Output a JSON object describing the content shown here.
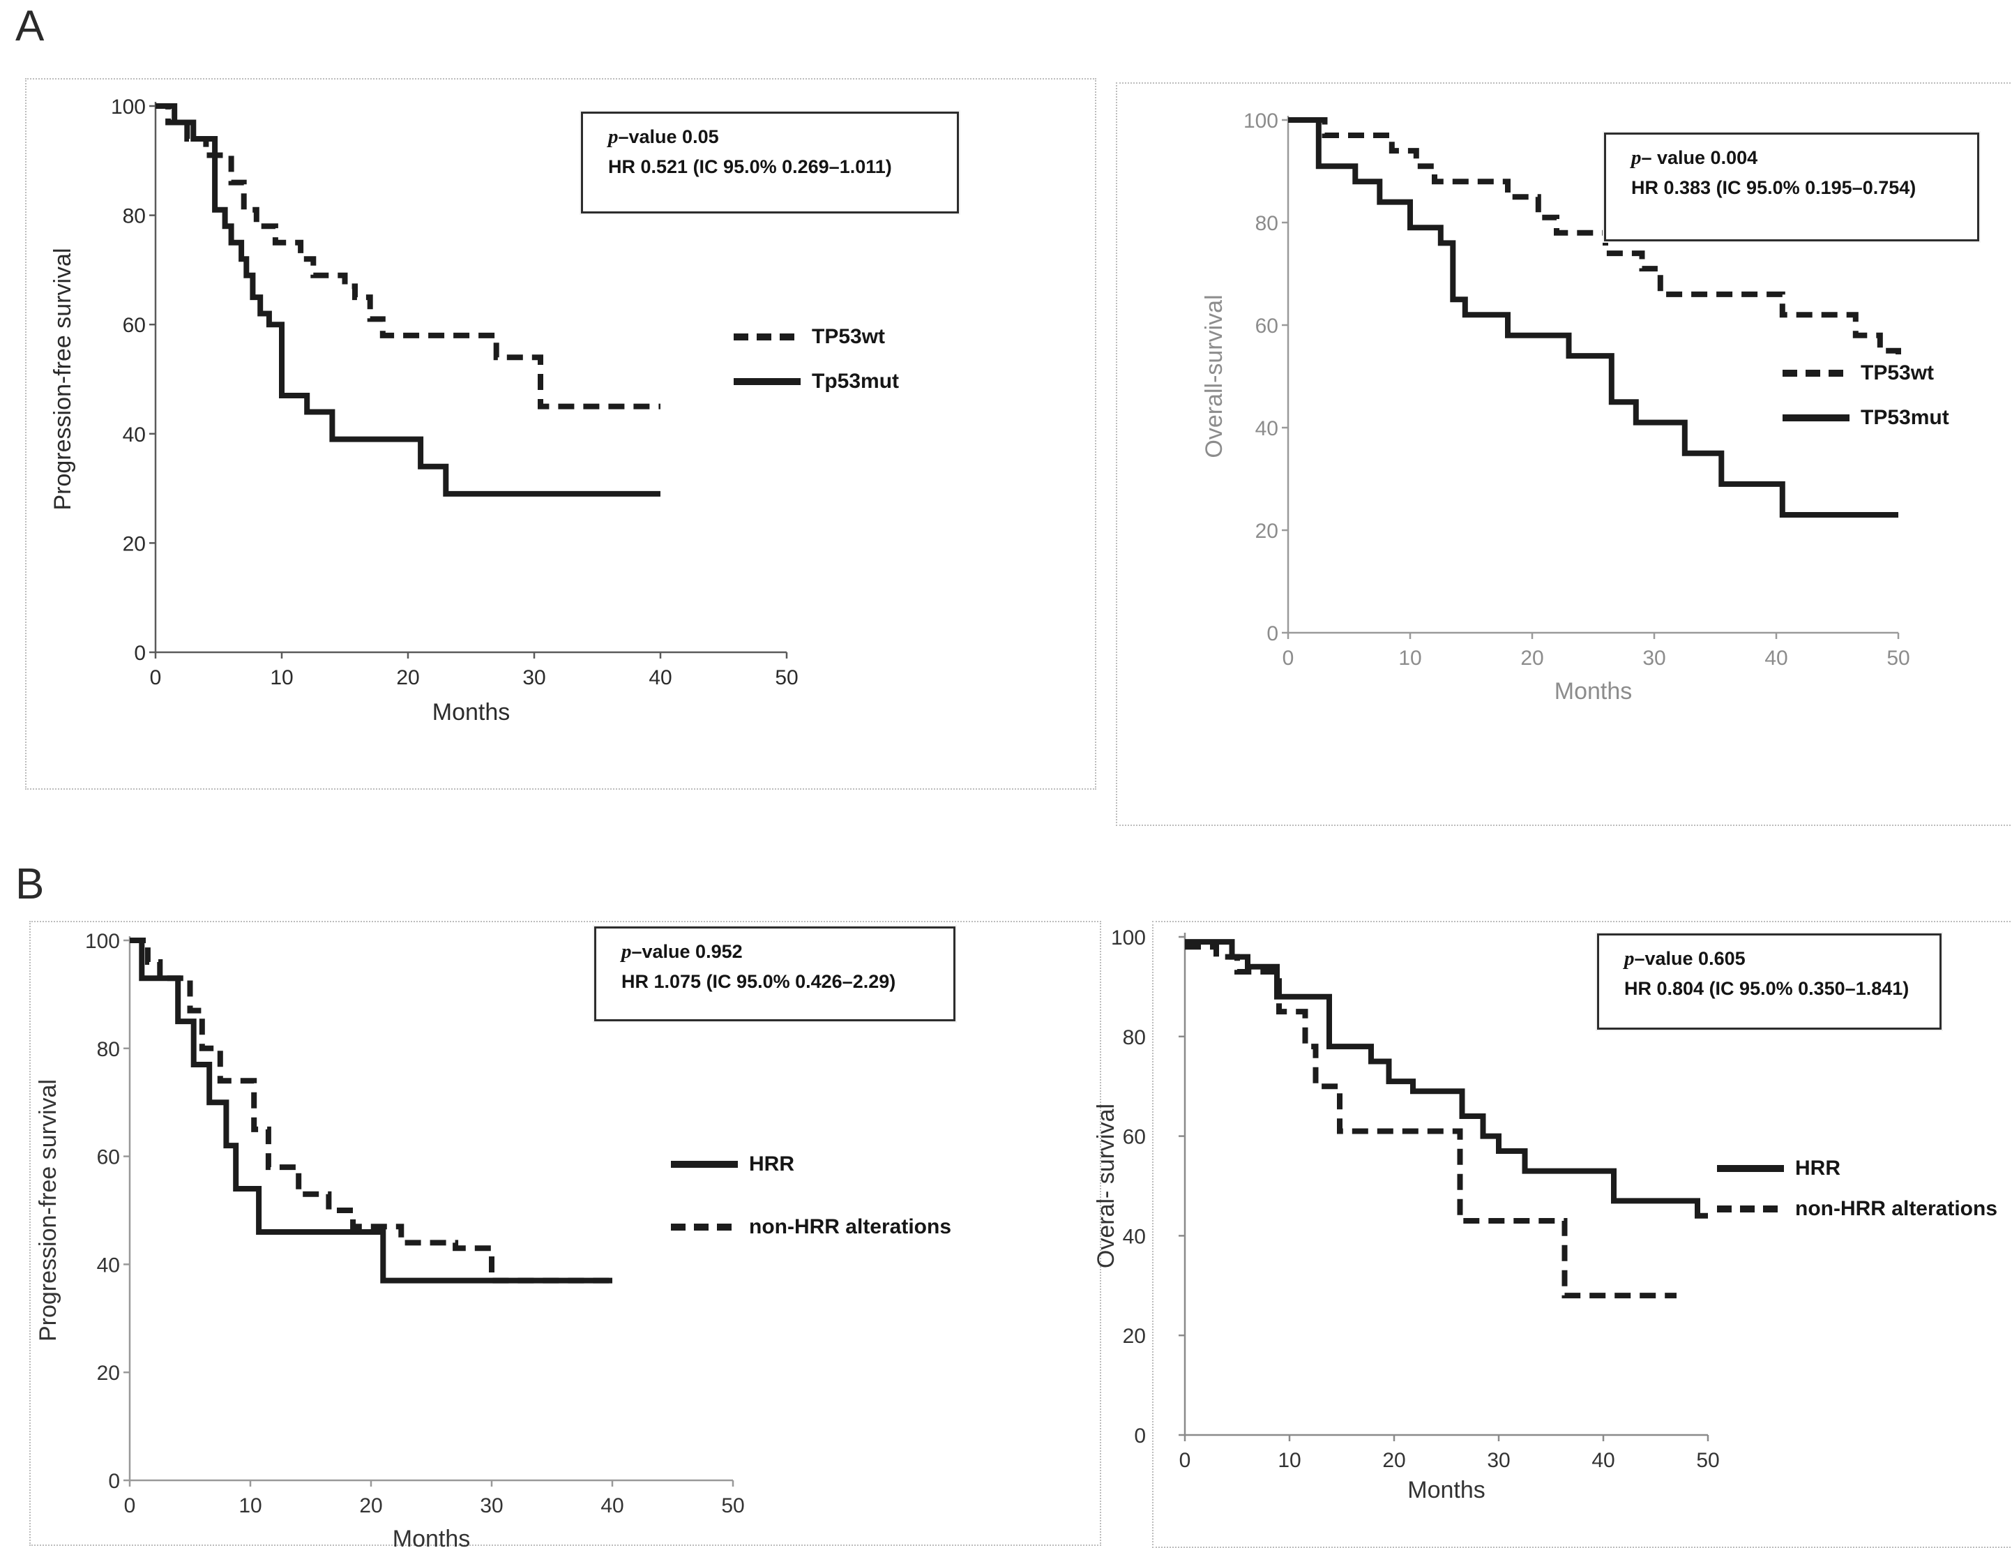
{
  "figure": {
    "section_a_label": "A",
    "section_b_label": "B"
  },
  "chart_data": [
    {
      "id": "a-progression-free-survival",
      "type": "line",
      "subtype": "kaplan-meier-step",
      "title": "",
      "xlabel": "Months",
      "ylabel": "Progression-free survival",
      "xlim": [
        0,
        50
      ],
      "ylim": [
        0,
        100
      ],
      "x_ticks": [
        0,
        10,
        20,
        30,
        40,
        50
      ],
      "y_ticks": [
        0,
        20,
        40,
        60,
        80,
        100
      ],
      "grid": false,
      "legend_position": "right",
      "ink": "#1c1c1c",
      "axis_color": "#5a5a5a",
      "tick_color": "#2b2b2b",
      "annotation": {
        "p_italic": "p",
        "p_text": "–value 0.05",
        "hr_text": "HR 0.521 (IC 95.0% 0.269–1.011)"
      },
      "legend": [
        {
          "label": "TP53wt",
          "style": "dashed"
        },
        {
          "label": "Tp53mut",
          "style": "solid"
        }
      ],
      "series": [
        {
          "name": "Tp53mut",
          "style": "solid",
          "points": [
            [
              0,
              100
            ],
            [
              1.5,
              97
            ],
            [
              3,
              94
            ],
            [
              4.7,
              81
            ],
            [
              5.5,
              78
            ],
            [
              6,
              75
            ],
            [
              6.8,
              72
            ],
            [
              7.2,
              69
            ],
            [
              7.7,
              65
            ],
            [
              8.3,
              62
            ],
            [
              9,
              60
            ],
            [
              10,
              47
            ],
            [
              12,
              44
            ],
            [
              14,
              39
            ],
            [
              21,
              34
            ],
            [
              23,
              29
            ],
            [
              40,
              29
            ]
          ]
        },
        {
          "name": "TP53wt",
          "style": "dashed",
          "points": [
            [
              0,
              100
            ],
            [
              1,
              97
            ],
            [
              2.5,
              94
            ],
            [
              4,
              91
            ],
            [
              6,
              86
            ],
            [
              7,
              81
            ],
            [
              8,
              78
            ],
            [
              9.5,
              75
            ],
            [
              11.5,
              72
            ],
            [
              12.5,
              69
            ],
            [
              15,
              67
            ],
            [
              15.8,
              65
            ],
            [
              17,
              61
            ],
            [
              18,
              58
            ],
            [
              27,
              54
            ],
            [
              30.5,
              45
            ],
            [
              40,
              45
            ]
          ]
        }
      ]
    },
    {
      "id": "a-overall-survival",
      "type": "line",
      "subtype": "kaplan-meier-step",
      "title": "",
      "xlabel": "Months",
      "ylabel": "Overall-survival",
      "xlim": [
        0,
        50
      ],
      "ylim": [
        0,
        100
      ],
      "x_ticks": [
        0,
        10,
        20,
        30,
        40,
        50
      ],
      "y_ticks": [
        0,
        20,
        40,
        60,
        80,
        100
      ],
      "grid": false,
      "legend_position": "right",
      "ink": "#1c1c1c",
      "axis_color": "#9a9a9a",
      "tick_color": "#8c8c8c",
      "annotation": {
        "p_italic": "p",
        "p_text": "– value 0.004",
        "hr_text": "HR 0.383 (IC 95.0% 0.195–0.754)"
      },
      "legend": [
        {
          "label": "TP53wt",
          "style": "dashed"
        },
        {
          "label": "TP53mut",
          "style": "solid"
        }
      ],
      "series": [
        {
          "name": "TP53mut",
          "style": "solid",
          "points": [
            [
              0,
              100
            ],
            [
              2.5,
              91
            ],
            [
              5.5,
              88
            ],
            [
              7.5,
              84
            ],
            [
              10,
              79
            ],
            [
              12.5,
              76
            ],
            [
              13.5,
              65
            ],
            [
              14.5,
              62
            ],
            [
              18,
              58
            ],
            [
              23,
              54
            ],
            [
              26.5,
              45
            ],
            [
              28.5,
              41
            ],
            [
              32.5,
              35
            ],
            [
              35.5,
              29
            ],
            [
              40.5,
              23
            ],
            [
              50,
              23
            ]
          ]
        },
        {
          "name": "TP53wt",
          "style": "dashed",
          "points": [
            [
              0,
              100
            ],
            [
              3,
              97
            ],
            [
              8.5,
              94
            ],
            [
              10.5,
              91
            ],
            [
              12,
              88
            ],
            [
              18,
              85
            ],
            [
              20.5,
              81
            ],
            [
              22,
              78
            ],
            [
              26,
              74
            ],
            [
              29,
              71
            ],
            [
              30.5,
              66
            ],
            [
              40.5,
              62
            ],
            [
              46.5,
              58
            ],
            [
              48.5,
              55
            ],
            [
              50,
              53
            ]
          ]
        }
      ]
    },
    {
      "id": "b-progression-free-survival",
      "type": "line",
      "subtype": "kaplan-meier-step",
      "title": "",
      "xlabel": "Months",
      "ylabel": "Progression-free survival",
      "xlim": [
        0,
        50
      ],
      "ylim": [
        0,
        100
      ],
      "x_ticks": [
        0,
        10,
        20,
        30,
        40,
        50
      ],
      "y_ticks": [
        0,
        20,
        40,
        60,
        80,
        100
      ],
      "grid": false,
      "legend_position": "right",
      "ink": "#1c1c1c",
      "axis_color": "#999999",
      "tick_color": "#333333",
      "annotation": {
        "p_italic": "p",
        "p_text": "–value 0.952",
        "hr_text": "HR 1.075 (IC 95.0% 0.426–2.29)"
      },
      "legend": [
        {
          "label": "HRR",
          "style": "solid"
        },
        {
          "label": "non-HRR alterations",
          "style": "dashed"
        }
      ],
      "series": [
        {
          "name": "HRR",
          "style": "solid",
          "points": [
            [
              0,
              100
            ],
            [
              1,
              93
            ],
            [
              4,
              85
            ],
            [
              5.3,
              77
            ],
            [
              6.6,
              70
            ],
            [
              8,
              62
            ],
            [
              8.8,
              54
            ],
            [
              10.7,
              46
            ],
            [
              21,
              37
            ],
            [
              40,
              37
            ]
          ]
        },
        {
          "name": "non-HRR alterations",
          "style": "dashed",
          "points": [
            [
              0,
              100
            ],
            [
              1.5,
              96
            ],
            [
              2.5,
              93
            ],
            [
              5,
              87
            ],
            [
              6,
              80
            ],
            [
              7.5,
              74
            ],
            [
              10.3,
              65
            ],
            [
              11.5,
              58
            ],
            [
              14,
              53
            ],
            [
              16.5,
              50
            ],
            [
              18.5,
              47
            ],
            [
              22.5,
              44
            ],
            [
              27,
              43
            ],
            [
              30,
              37
            ],
            [
              40,
              37
            ]
          ]
        }
      ]
    },
    {
      "id": "b-overall-survival",
      "type": "line",
      "subtype": "kaplan-meier-step",
      "title": "",
      "xlabel": "Months",
      "ylabel": "Overal- survival",
      "xlim": [
        0,
        50
      ],
      "ylim": [
        0,
        100
      ],
      "x_ticks": [
        0,
        10,
        20,
        30,
        40,
        50
      ],
      "y_ticks": [
        0,
        20,
        40,
        60,
        80,
        100
      ],
      "grid": false,
      "legend_position": "right",
      "ink": "#1c1c1c",
      "axis_color": "#8a8a8a",
      "tick_color": "#333333",
      "annotation": {
        "p_italic": "p",
        "p_text": "–value 0.605",
        "hr_text": "HR 0.804 (IC 95.0% 0.350–1.841)"
      },
      "legend": [
        {
          "label": "HRR",
          "style": "solid"
        },
        {
          "label": "non-HRR alterations",
          "style": "dashed"
        }
      ],
      "series": [
        {
          "name": "HRR",
          "style": "solid",
          "points": [
            [
              0,
              99
            ],
            [
              4.5,
              96
            ],
            [
              6,
              94
            ],
            [
              8.8,
              88
            ],
            [
              13.8,
              78
            ],
            [
              17.8,
              75
            ],
            [
              19.5,
              71
            ],
            [
              21.8,
              69
            ],
            [
              26.5,
              64
            ],
            [
              28.5,
              60
            ],
            [
              30,
              57
            ],
            [
              32.5,
              53
            ],
            [
              41,
              47
            ],
            [
              49,
              44
            ],
            [
              50,
              44
            ]
          ]
        },
        {
          "name": "non-HRR alterations",
          "style": "dashed",
          "points": [
            [
              0,
              98
            ],
            [
              3,
              96
            ],
            [
              5,
              93
            ],
            [
              9,
              85
            ],
            [
              11.5,
              78
            ],
            [
              12.5,
              70
            ],
            [
              14.8,
              61
            ],
            [
              26.3,
              43
            ],
            [
              36.3,
              28
            ],
            [
              47,
              28
            ]
          ]
        }
      ]
    }
  ]
}
